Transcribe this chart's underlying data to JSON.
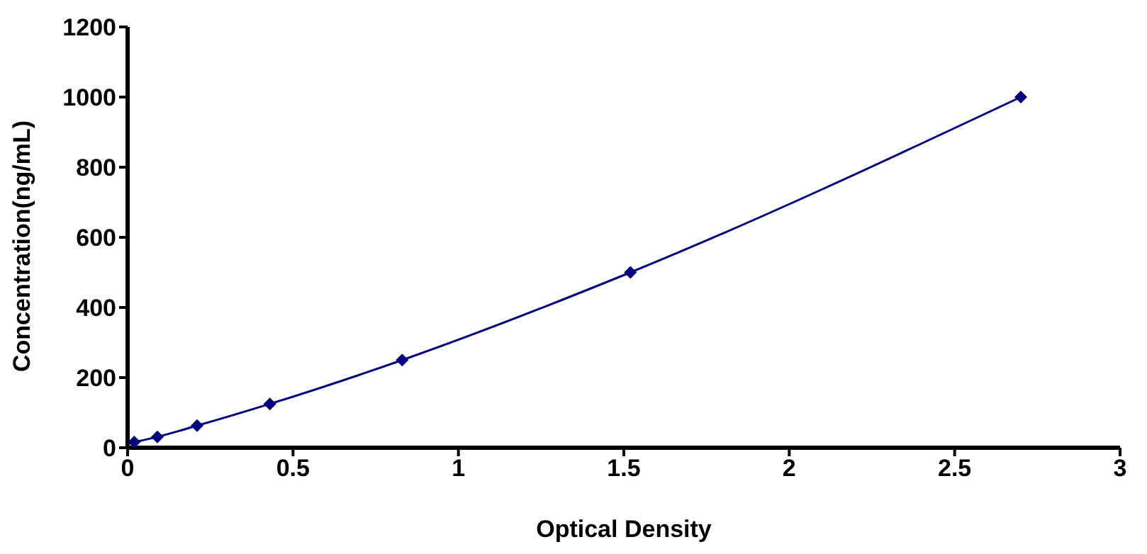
{
  "chart_data": {
    "type": "line",
    "xlabel": "Optical Density",
    "ylabel": "Concentration(ng/mL)",
    "x": [
      0.02,
      0.09,
      0.21,
      0.43,
      0.83,
      1.52,
      2.7
    ],
    "series": [
      {
        "color": "#000080",
        "values": [
          16,
          31,
          63,
          125,
          250,
          500,
          1000
        ]
      }
    ],
    "xlim": [
      0,
      3
    ],
    "xticks": [
      0,
      0.5,
      1,
      1.5,
      2,
      2.5,
      3
    ],
    "ylim": [
      0,
      1200
    ],
    "yticks": [
      0,
      200,
      400,
      600,
      800,
      1000,
      1200
    ],
    "grid": false,
    "legend": false,
    "marker": "diamond",
    "line_style": "solid"
  }
}
